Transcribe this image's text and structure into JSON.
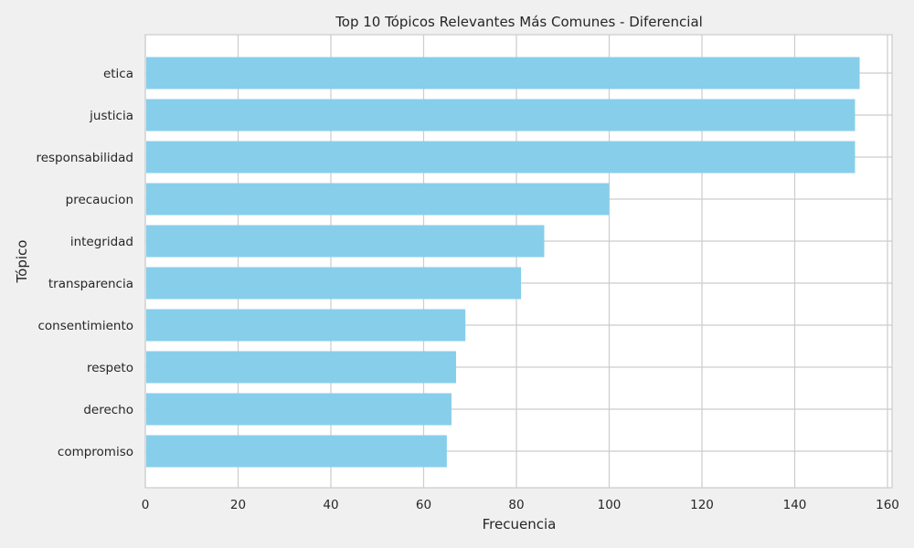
{
  "chart_data": {
    "type": "bar",
    "orientation": "horizontal",
    "title": "Top 10 Tópicos Relevantes Más Comunes - Diferencial",
    "xlabel": "Frecuencia",
    "ylabel": "Tópico",
    "categories": [
      "etica",
      "justicia",
      "responsabilidad",
      "precaucion",
      "integridad",
      "transparencia",
      "consentimiento",
      "respeto",
      "derecho",
      "compromiso"
    ],
    "values": [
      154,
      153,
      153,
      100,
      86,
      81,
      69,
      67,
      66,
      65
    ],
    "xlim": [
      0,
      160
    ],
    "xticks": [
      0,
      20,
      40,
      60,
      80,
      100,
      120,
      140,
      160
    ],
    "grid": true,
    "colors": {
      "bar": "#87ceeb",
      "background": "#f0f0f0",
      "plot_background": "#ffffff",
      "grid": "#cccccc",
      "text": "#262626"
    }
  }
}
